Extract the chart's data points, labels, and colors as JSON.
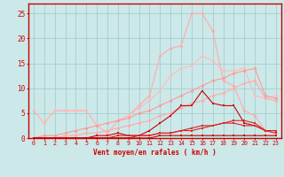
{
  "xlabel": "Vent moyen/en rafales ( km/h )",
  "bg_color": "#cce8e8",
  "grid_color": "#99cccc",
  "x": [
    0,
    1,
    2,
    3,
    4,
    5,
    6,
    7,
    8,
    9,
    10,
    11,
    12,
    13,
    14,
    15,
    16,
    17,
    18,
    19,
    20,
    21,
    22,
    23
  ],
  "series": {
    "pink_jagged": [
      5.5,
      3.0,
      5.5,
      5.5,
      5.5,
      5.5,
      2.5,
      1.0,
      3.5,
      4.5,
      6.5,
      8.5,
      16.5,
      18.0,
      18.5,
      25.0,
      25.0,
      21.5,
      11.5,
      10.5,
      5.5,
      4.5,
      1.5,
      1.0
    ],
    "pink_smooth": [
      5.5,
      3.0,
      5.5,
      5.5,
      5.5,
      5.5,
      2.5,
      1.0,
      3.5,
      4.5,
      6.0,
      7.5,
      9.5,
      12.5,
      14.0,
      14.5,
      16.5,
      15.5,
      13.5,
      13.5,
      14.0,
      8.5,
      8.0,
      8.5
    ],
    "salmon_upper": [
      0.0,
      0.5,
      0.5,
      1.0,
      1.5,
      2.0,
      2.5,
      3.0,
      3.5,
      4.0,
      5.0,
      5.5,
      6.5,
      7.5,
      8.5,
      9.5,
      10.5,
      11.5,
      12.0,
      13.0,
      13.5,
      14.0,
      8.5,
      8.0
    ],
    "salmon_lower": [
      0.0,
      0.0,
      0.0,
      0.5,
      0.5,
      1.0,
      1.0,
      1.5,
      2.0,
      2.5,
      3.0,
      3.5,
      4.5,
      5.0,
      6.0,
      7.0,
      7.5,
      8.5,
      9.0,
      10.0,
      11.0,
      11.5,
      8.0,
      7.5
    ],
    "dark_jagged": [
      0.0,
      0.0,
      0.0,
      0.0,
      0.0,
      0.0,
      0.5,
      0.5,
      1.0,
      0.5,
      0.5,
      1.5,
      3.0,
      4.5,
      6.5,
      6.5,
      9.5,
      7.0,
      6.5,
      6.5,
      3.0,
      2.5,
      1.5,
      1.5
    ],
    "dark_flat1": [
      0.0,
      0.0,
      0.0,
      0.0,
      0.0,
      0.0,
      0.0,
      0.0,
      0.5,
      0.5,
      0.5,
      0.5,
      1.0,
      1.0,
      1.5,
      2.0,
      2.5,
      2.5,
      3.0,
      3.5,
      3.5,
      3.0,
      1.5,
      1.5
    ],
    "dark_flat2": [
      0.0,
      0.0,
      0.0,
      0.0,
      0.0,
      0.0,
      0.0,
      0.0,
      0.0,
      0.0,
      0.5,
      0.5,
      1.0,
      1.0,
      1.5,
      1.5,
      2.0,
      2.5,
      3.0,
      3.0,
      2.5,
      2.5,
      1.5,
      1.0
    ],
    "near_zero": [
      0.0,
      0.0,
      0.0,
      0.0,
      0.0,
      0.0,
      0.0,
      0.0,
      0.0,
      0.0,
      0.0,
      0.0,
      0.5,
      0.5,
      0.5,
      0.5,
      0.5,
      0.5,
      0.5,
      0.5,
      0.5,
      0.5,
      0.5,
      0.5
    ]
  },
  "ylim": [
    0,
    27
  ],
  "yticks": [
    0,
    5,
    10,
    15,
    20,
    25
  ],
  "text_color": "#cc0000",
  "axis_color": "#cc0000"
}
